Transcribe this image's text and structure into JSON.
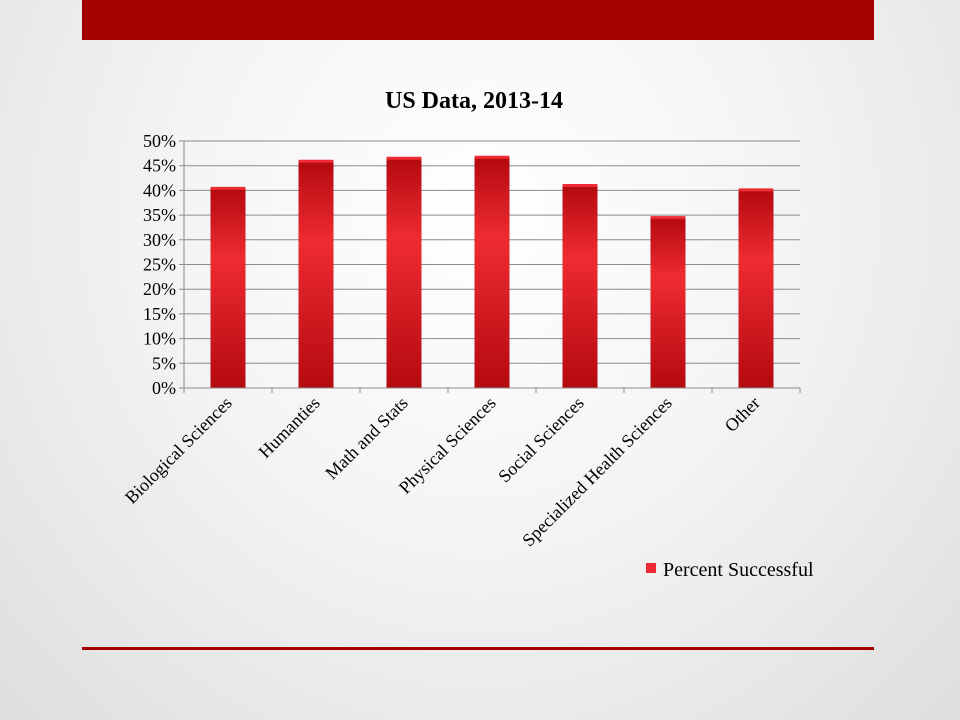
{
  "colors": {
    "accent": "#a50000",
    "bar_light": "#ee2b32",
    "bar_dark": "#b40a0f",
    "grid": "#8c8c8c"
  },
  "chart_data": {
    "type": "bar",
    "title": "US Data, 2013-14",
    "categories": [
      "Biological Sciences",
      "Humanties",
      "Math and Stats",
      "Physical Sciences",
      "Social Sciences",
      "Specialized Health Sciences",
      "Other"
    ],
    "series": [
      {
        "name": "Percent Successful",
        "values": [
          40.3,
          45.8,
          46.4,
          46.6,
          40.9,
          34.4,
          40.0
        ]
      }
    ],
    "y_ticks": [
      "0%",
      "5%",
      "10%",
      "15%",
      "20%",
      "25%",
      "30%",
      "35%",
      "40%",
      "45%",
      "50%"
    ],
    "ylim": [
      0,
      50
    ],
    "y_unit": "percent",
    "grid": true,
    "legend_position": "bottom-right"
  }
}
